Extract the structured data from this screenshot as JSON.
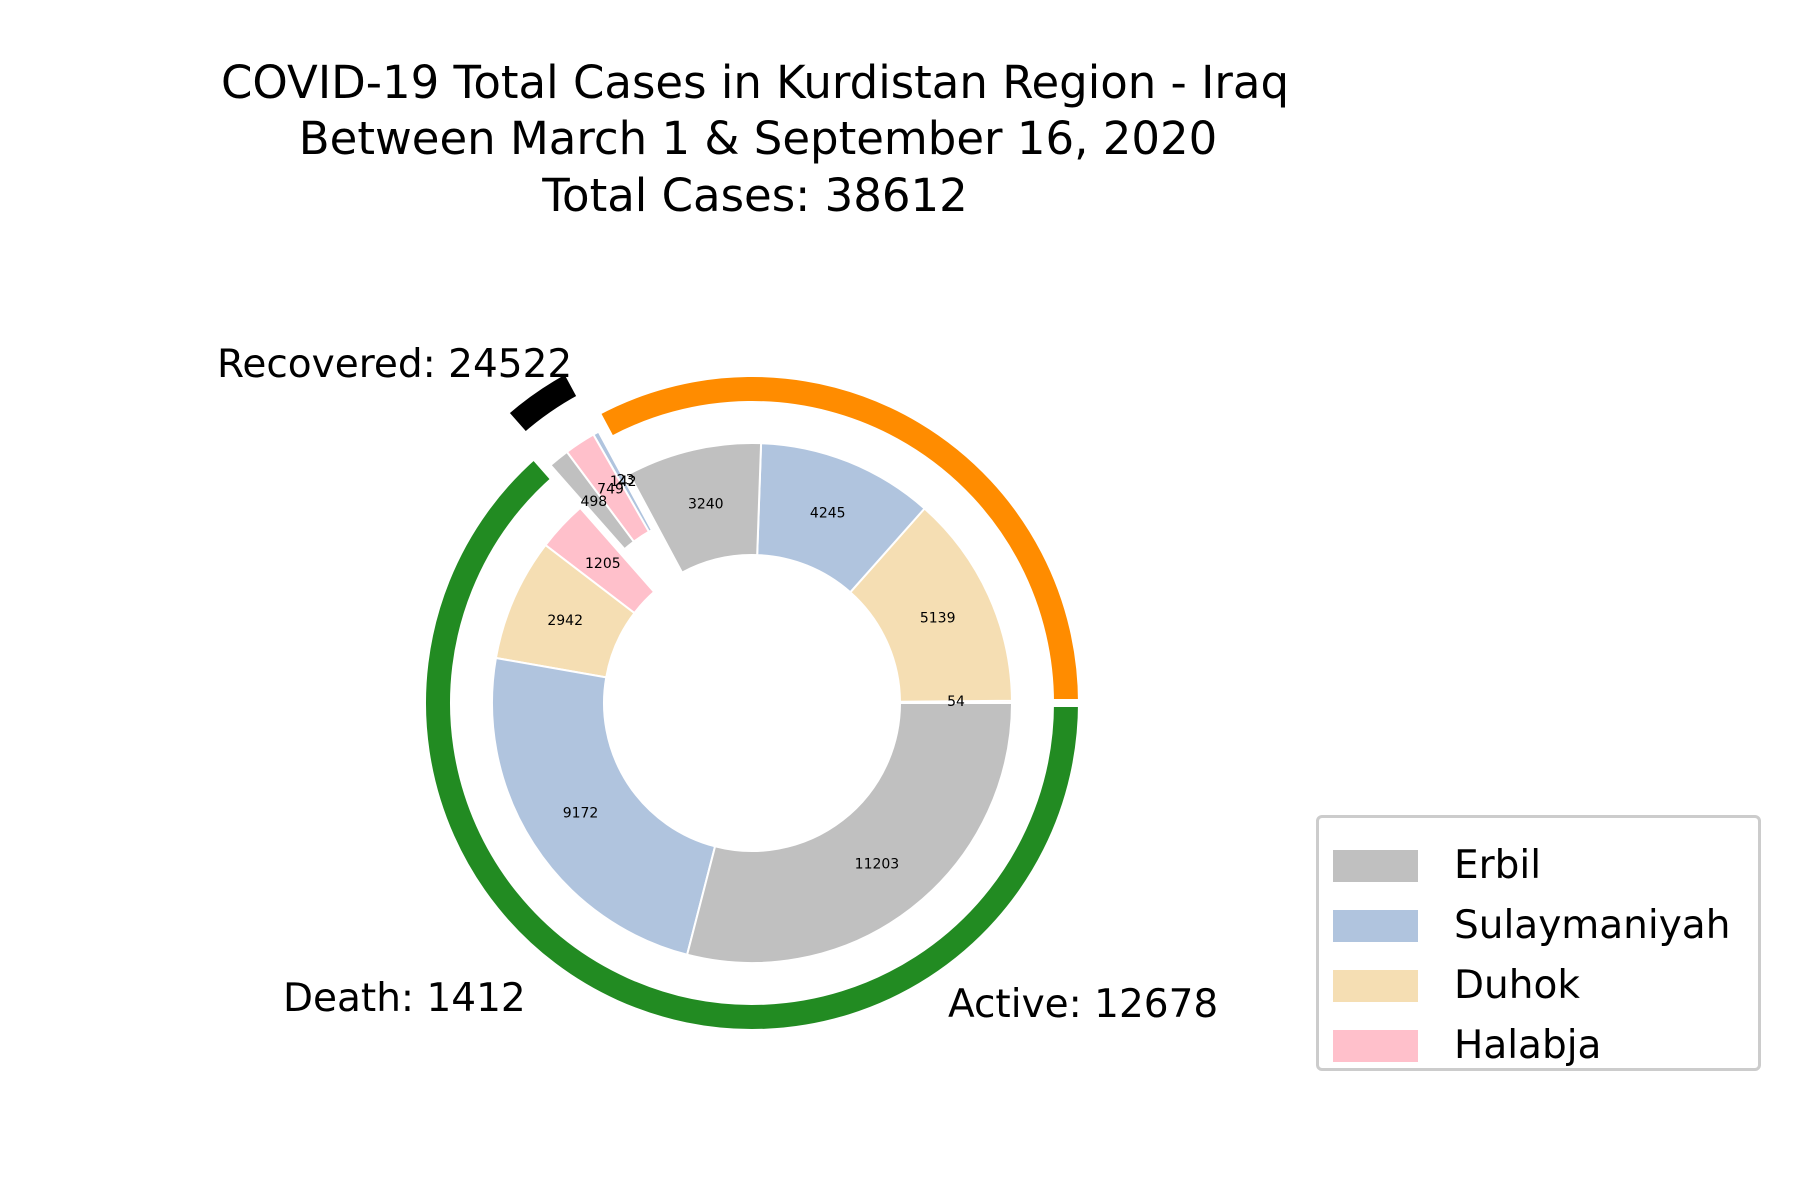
{
  "chart_data": {
    "type": "pie",
    "title_lines": [
      "COVID-19 Total Cases in Kurdistan Region - Iraq",
      "Between March 1 & September 16, 2020",
      "Total Cases: 38612"
    ],
    "colors": {
      "Recovered": "#228B22",
      "Active": "#FF8C00",
      "Death": "#000000",
      "Erbil": "#C0C0C0",
      "Sulaymaniyah": "#B0C4DE",
      "Duhok": "#F5DEB3",
      "Halabja": "#FFC0CB"
    },
    "outer_ring": [
      {
        "category": "Active",
        "label": "Active: 12678",
        "value": 12678
      },
      {
        "category": "Death",
        "label": "Death: 1412",
        "value": 1412
      },
      {
        "category": "Recovered",
        "label": "Recovered: 24522",
        "value": 24522
      }
    ],
    "inner_ring": [
      {
        "group": "Active",
        "region": "Halabja",
        "value": 54
      },
      {
        "group": "Active",
        "region": "Duhok",
        "value": 5139
      },
      {
        "group": "Active",
        "region": "Sulaymaniyah",
        "value": 4245
      },
      {
        "group": "Active",
        "region": "Erbil",
        "value": 3240
      },
      {
        "group": "Death",
        "region": "Duhok",
        "value": 23
      },
      {
        "group": "Death",
        "region": "Sulaymaniyah",
        "value": 142
      },
      {
        "group": "Death",
        "region": "Halabja",
        "value": 749
      },
      {
        "group": "Death",
        "region": "Erbil",
        "value": 498
      },
      {
        "group": "Recovered",
        "region": "Halabja",
        "value": 1205
      },
      {
        "group": "Recovered",
        "region": "Duhok",
        "value": 2942
      },
      {
        "group": "Recovered",
        "region": "Sulaymaniyah",
        "value": 9172
      },
      {
        "group": "Recovered",
        "region": "Erbil",
        "value": 11203
      }
    ],
    "legend": {
      "placement": "lower-right",
      "entries": [
        "Erbil",
        "Sulaymaniyah",
        "Duhok",
        "Halabja"
      ]
    }
  }
}
